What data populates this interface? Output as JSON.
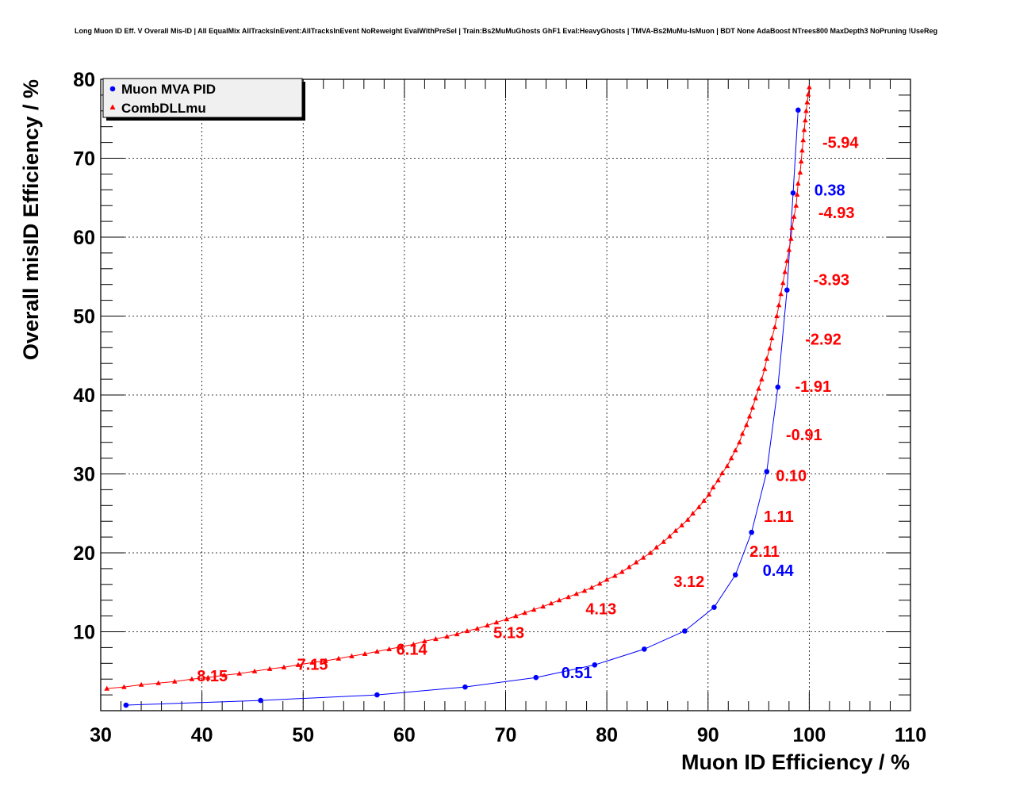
{
  "chart_data": {
    "type": "line",
    "title": "Long Muon ID Eff. V Overall Mis-ID | All EqualMix AllTracksInEvent:AllTracksInEvent NoReweight EvalWithPreSel | Train:Bs2MuMuGhosts GhF1 Eval:HeavyGhosts | TMVA-Bs2MuMu-IsMuon | BDT None AdaBoost NTrees800 MaxDepth3 NoPruning !UseReg",
    "xlabel": "Muon ID Efficiency / %",
    "ylabel": "Overall misID Efficiency / %",
    "xlim": [
      30,
      110
    ],
    "ylim": [
      0,
      80
    ],
    "xticks": [
      "30",
      "40",
      "50",
      "60",
      "70",
      "80",
      "90",
      "100",
      "110"
    ],
    "yticks": [
      "10",
      "20",
      "30",
      "40",
      "50",
      "60",
      "70",
      "80"
    ],
    "grid": true,
    "legend_position": "top-left",
    "series": [
      {
        "name": "Muon MVA PID",
        "color": "#0000ff",
        "marker": "circle",
        "x": [
          32.5,
          45.8,
          57.3,
          66.0,
          73.0,
          78.8,
          83.7,
          87.7,
          90.6,
          92.7,
          94.3,
          95.8,
          96.9,
          97.8,
          98.4,
          98.9
        ],
        "y": [
          0.7,
          1.3,
          2.0,
          3.0,
          4.2,
          5.8,
          7.8,
          10.1,
          13.1,
          17.2,
          22.6,
          30.3,
          41.0,
          53.3,
          65.6,
          76.1
        ]
      },
      {
        "name": "CombDLLmu",
        "color": "#ff0000",
        "marker": "triangle",
        "x": [
          30.6,
          32.3,
          34.0,
          35.7,
          37.3,
          39.0,
          40.6,
          42.2,
          43.7,
          45.2,
          46.7,
          48.1,
          49.5,
          50.9,
          52.2,
          53.5,
          54.8,
          56.1,
          57.3,
          58.5,
          59.7,
          60.9,
          62.0,
          63.1,
          64.2,
          65.2,
          66.2,
          67.2,
          68.2,
          69.1,
          70.1,
          71.0,
          71.9,
          72.8,
          73.7,
          74.5,
          75.3,
          76.2,
          77.0,
          77.8,
          78.5,
          79.3,
          80.0,
          80.8,
          81.5,
          82.2,
          82.9,
          83.6,
          84.3,
          84.9,
          85.6,
          86.2,
          86.8,
          87.4,
          88.0,
          88.5,
          89.1,
          89.6,
          90.1,
          90.5,
          91.0,
          91.4,
          91.9,
          92.3,
          92.7,
          93.1,
          93.4,
          93.8,
          94.1,
          94.4,
          94.7,
          95.0,
          95.3,
          95.6,
          95.8,
          96.1,
          96.3,
          96.6,
          96.8,
          97.0,
          97.2,
          97.4,
          97.6,
          97.8,
          98.0,
          98.2,
          98.3,
          98.5,
          98.7,
          98.8,
          98.9,
          99.1,
          99.2,
          99.3,
          99.4,
          99.5,
          99.6,
          99.7,
          99.8,
          99.9,
          100.0
        ],
        "y": [
          2.8,
          3.0,
          3.3,
          3.5,
          3.7,
          4.0,
          4.2,
          4.5,
          4.7,
          5.0,
          5.3,
          5.5,
          5.8,
          6.1,
          6.3,
          6.6,
          6.9,
          7.2,
          7.5,
          7.8,
          8.1,
          8.4,
          8.8,
          9.1,
          9.4,
          9.7,
          10.1,
          10.4,
          10.8,
          11.2,
          11.6,
          12.0,
          12.4,
          12.8,
          13.2,
          13.6,
          14.0,
          14.4,
          14.8,
          15.2,
          15.6,
          16.1,
          16.6,
          17.1,
          17.6,
          18.2,
          18.8,
          19.4,
          20.0,
          20.7,
          21.4,
          22.1,
          22.8,
          23.5,
          24.2,
          25.0,
          25.8,
          26.6,
          27.4,
          28.3,
          29.2,
          30.1,
          31.0,
          32.0,
          33.0,
          34.0,
          35.1,
          36.2,
          37.3,
          38.4,
          39.6,
          40.8,
          42.0,
          43.3,
          44.6,
          45.9,
          47.2,
          48.6,
          50.0,
          51.4,
          52.8,
          54.2,
          55.6,
          57.0,
          58.4,
          59.8,
          61.2,
          62.6,
          64.0,
          65.4,
          66.8,
          68.2,
          69.6,
          71.0,
          72.3,
          73.6,
          74.8,
          76.0,
          77.1,
          78.1,
          79.0
        ]
      }
    ],
    "annotations": [
      {
        "text": "-5.94",
        "color": "#ff0000",
        "x": 101.3,
        "y": 72.0
      },
      {
        "text": "0.38",
        "color": "#0000ff",
        "x": 100.5,
        "y": 66.0
      },
      {
        "text": "-4.93",
        "color": "#ff0000",
        "x": 100.9,
        "y": 63.1
      },
      {
        "text": "-3.93",
        "color": "#ff0000",
        "x": 100.4,
        "y": 54.6
      },
      {
        "text": "-2.92",
        "color": "#ff0000",
        "x": 99.6,
        "y": 47.1
      },
      {
        "text": "-1.91",
        "color": "#ff0000",
        "x": 98.6,
        "y": 41.1
      },
      {
        "text": "-0.91",
        "color": "#ff0000",
        "x": 97.7,
        "y": 35.0
      },
      {
        "text": "0.10",
        "color": "#ff0000",
        "x": 96.7,
        "y": 29.8
      },
      {
        "text": "1.11",
        "color": "#ff0000",
        "x": 95.5,
        "y": 24.6
      },
      {
        "text": "0.44",
        "color": "#0000ff",
        "x": 95.4,
        "y": 17.8
      },
      {
        "text": "2.11",
        "color": "#ff0000",
        "x": 94.1,
        "y": 20.2
      },
      {
        "text": "3.12",
        "color": "#ff0000",
        "x": 86.6,
        "y": 16.4
      },
      {
        "text": "4.13",
        "color": "#ff0000",
        "x": 77.9,
        "y": 12.9
      },
      {
        "text": "5.13",
        "color": "#ff0000",
        "x": 68.8,
        "y": 9.9
      },
      {
        "text": "0.51",
        "color": "#0000ff",
        "x": 75.5,
        "y": 4.8
      },
      {
        "text": "6.14",
        "color": "#ff0000",
        "x": 59.2,
        "y": 7.8
      },
      {
        "text": "7.15",
        "color": "#ff0000",
        "x": 49.4,
        "y": 5.9
      },
      {
        "text": "8.15",
        "color": "#ff0000",
        "x": 39.5,
        "y": 4.4
      }
    ]
  }
}
